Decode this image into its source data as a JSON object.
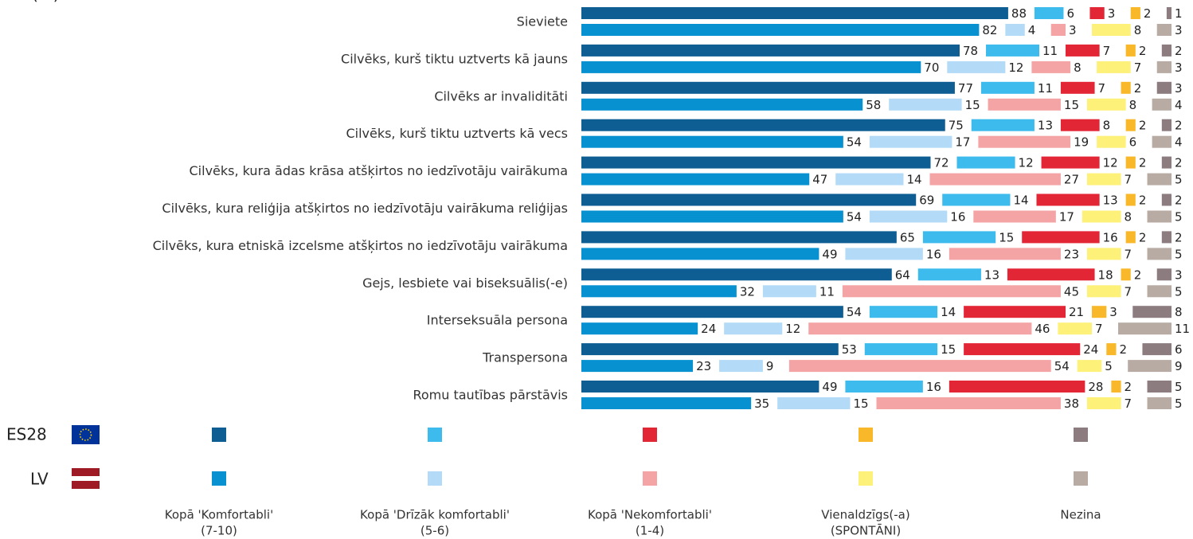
{
  "chart_data": {
    "type": "bar",
    "stacked": true,
    "unit_label": "(%)",
    "categories": [
      "Sieviete",
      "Cilvēks, kurš tiktu uztverts kā jauns",
      "Cilvēks ar invaliditāti",
      "Cilvēks, kurš tiktu uztverts kā vecs",
      "Cilvēks, kura ādas krāsa atšķirtos no iedzīvotāju vairākuma",
      "Cilvēks, kura reliģija atšķirtos no iedzīvotāju vairākuma reliģijas",
      "Cilvēks, kura etniskā izcelsme atšķirtos no iedzīvotāju vairākuma",
      "Gejs, lesbiete vai biseksuālis(-e)",
      "Interseksuāla persona",
      "Transpersona",
      "Romu tautības pārstāvis"
    ],
    "legend_names": [
      [
        "Kopā 'Komfortabli'",
        "(7-10)"
      ],
      [
        "Kopā 'Drīzāk komfortabli'",
        "(5-6)"
      ],
      [
        "Kopā 'Nekomfortabli'",
        "(1-4)"
      ],
      [
        "Vienaldzīgs(-a)",
        "(SPONTĀNI)"
      ],
      [
        "Nezina"
      ]
    ],
    "groups": [
      {
        "name": "ES28",
        "series": [
          {
            "color": "#0e5e93",
            "values": [
              88,
              78,
              77,
              75,
              72,
              69,
              65,
              64,
              54,
              53,
              49
            ]
          },
          {
            "color": "#3dbbed",
            "values": [
              6,
              11,
              11,
              13,
              12,
              14,
              15,
              13,
              14,
              15,
              16
            ]
          },
          {
            "color": "#e32636",
            "values": [
              3,
              7,
              7,
              8,
              12,
              13,
              16,
              18,
              21,
              24,
              28
            ]
          },
          {
            "color": "#f8b82a",
            "values": [
              2,
              2,
              2,
              2,
              2,
              2,
              2,
              2,
              3,
              2,
              2
            ]
          },
          {
            "color": "#8c7b7f",
            "values": [
              1,
              2,
              3,
              2,
              2,
              2,
              2,
              3,
              8,
              6,
              5
            ]
          }
        ]
      },
      {
        "name": "LV",
        "series": [
          {
            "color": "#0891d0",
            "values": [
              82,
              70,
              58,
              54,
              47,
              54,
              49,
              32,
              24,
              23,
              35
            ]
          },
          {
            "color": "#b3dbf7",
            "values": [
              4,
              12,
              15,
              17,
              14,
              16,
              16,
              11,
              12,
              9,
              15
            ]
          },
          {
            "color": "#f4a4a4",
            "values": [
              3,
              8,
              15,
              19,
              27,
              17,
              23,
              45,
              46,
              54,
              38
            ]
          },
          {
            "color": "#fef17a",
            "values": [
              8,
              7,
              8,
              6,
              7,
              8,
              7,
              7,
              7,
              5,
              7
            ]
          },
          {
            "color": "#b8aba4",
            "values": [
              3,
              3,
              4,
              4,
              5,
              5,
              5,
              5,
              11,
              9,
              5
            ]
          }
        ]
      }
    ]
  }
}
